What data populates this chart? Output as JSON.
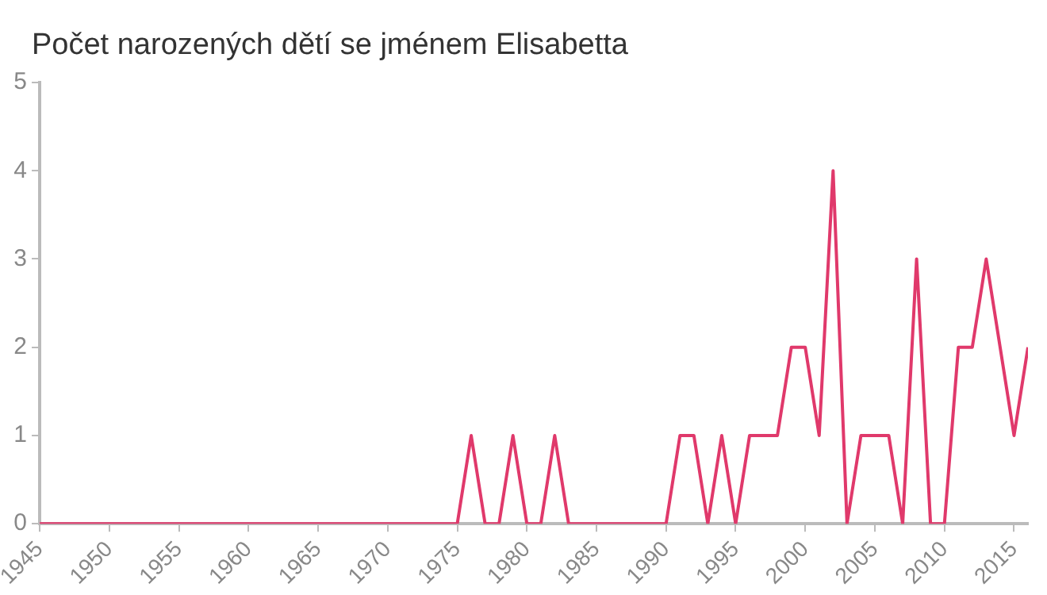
{
  "chart_data": {
    "type": "line",
    "title": "Počet narozených dětí se jménem Elisabetta",
    "x": [
      1945,
      1946,
      1947,
      1948,
      1949,
      1950,
      1951,
      1952,
      1953,
      1954,
      1955,
      1956,
      1957,
      1958,
      1959,
      1960,
      1961,
      1962,
      1963,
      1964,
      1965,
      1966,
      1967,
      1968,
      1969,
      1970,
      1971,
      1972,
      1973,
      1974,
      1975,
      1976,
      1977,
      1978,
      1979,
      1980,
      1981,
      1982,
      1983,
      1984,
      1985,
      1986,
      1987,
      1988,
      1989,
      1990,
      1991,
      1992,
      1993,
      1994,
      1995,
      1996,
      1997,
      1998,
      1999,
      2000,
      2001,
      2002,
      2003,
      2004,
      2005,
      2006,
      2007,
      2008,
      2009,
      2010,
      2011,
      2012,
      2013,
      2014,
      2015,
      2016
    ],
    "series": [
      {
        "color": "#e0396b",
        "values": [
          0,
          0,
          0,
          0,
          0,
          0,
          0,
          0,
          0,
          0,
          0,
          0,
          0,
          0,
          0,
          0,
          0,
          0,
          0,
          0,
          0,
          0,
          0,
          0,
          0,
          0,
          0,
          0,
          0,
          0,
          0,
          1,
          0,
          0,
          1,
          0,
          0,
          1,
          0,
          0,
          0,
          0,
          0,
          0,
          0,
          0,
          1,
          1,
          0,
          1,
          0,
          1,
          1,
          1,
          2,
          2,
          1,
          4,
          0,
          1,
          1,
          1,
          0,
          3,
          0,
          0,
          2,
          2,
          3,
          2,
          1,
          2
        ]
      }
    ],
    "xlim": [
      1945,
      2016
    ],
    "xticks": [
      1945,
      1950,
      1955,
      1960,
      1965,
      1970,
      1975,
      1980,
      1985,
      1990,
      1995,
      2000,
      2005,
      2010,
      2015
    ],
    "ylim": [
      0,
      5
    ],
    "yticks": [
      0,
      1,
      2,
      3,
      4,
      5
    ],
    "grid": false,
    "legend": false,
    "marker": "none",
    "line_style": "solid"
  }
}
